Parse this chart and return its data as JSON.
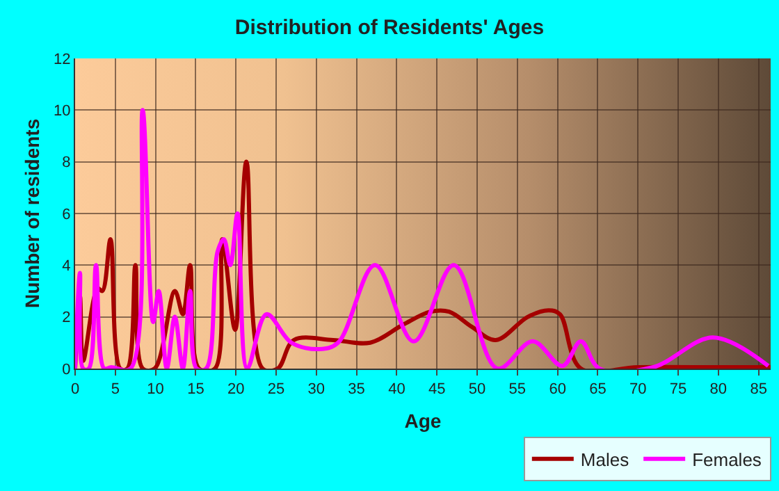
{
  "chart_data": {
    "type": "line",
    "title": "Distribution of Residents' Ages",
    "xlabel": "Age",
    "ylabel": "Number of residents",
    "xlim": [
      0,
      86.5
    ],
    "xticks": [
      0,
      5,
      10,
      15,
      20,
      25,
      30,
      35,
      40,
      45,
      50,
      55,
      60,
      65,
      70,
      75,
      80,
      85
    ],
    "ylim": [
      0,
      12
    ],
    "yticks": [
      0,
      2,
      4,
      6,
      8,
      10,
      12
    ],
    "grid": true,
    "legend": "bottom right",
    "marker": "none",
    "line_style": "solid",
    "series": [
      {
        "name": "Males",
        "color": "#a50000",
        "x": [
          0,
          0.6,
          1,
          2.8,
          3.4,
          4.4,
          5.6,
          6.5,
          7.5,
          8.4,
          9.9,
          12.4,
          13.4,
          14.3,
          15.4,
          17.4,
          18.3,
          19.9,
          21.3,
          23.3,
          25.2,
          27.2,
          32.1,
          36.7,
          40.8,
          44.2,
          46.5,
          49.4,
          52.3,
          56.3,
          58.9,
          60.3,
          62.9,
          70,
          80,
          86.5
        ],
        "values": [
          0,
          2.8,
          0.3,
          3.1,
          3,
          5,
          0,
          0,
          4,
          0,
          0,
          3,
          2.1,
          4,
          0,
          0,
          5,
          1.5,
          8,
          0,
          0,
          1.1,
          1.1,
          1,
          1.7,
          2.2,
          2.2,
          1.6,
          1.1,
          2,
          2.25,
          2.1,
          0,
          0.05,
          0.05,
          0.05
        ]
      },
      {
        "name": "Females",
        "color": "#ff00ff",
        "x": [
          0,
          0.6,
          1,
          1.7,
          2.6,
          3.6,
          4.5,
          6.9,
          8.4,
          9.7,
          10.4,
          11.4,
          12.4,
          13.4,
          14.3,
          15.1,
          16.3,
          17.7,
          18.5,
          19.3,
          20.2,
          21.4,
          23.8,
          26.9,
          30.4,
          32.7,
          37.3,
          42.1,
          47.1,
          52.5,
          56.9,
          60.6,
          62.9,
          65.2,
          71.9,
          79.3,
          86.2
        ],
        "values": [
          0,
          3.7,
          0,
          0,
          4,
          0,
          0.05,
          0,
          10,
          1.8,
          3,
          0,
          2,
          0,
          3,
          0,
          0,
          4.5,
          5,
          4,
          6,
          0,
          2.1,
          1,
          0.75,
          1,
          4,
          1.05,
          4,
          0,
          1.05,
          0.1,
          1.05,
          0,
          0.05,
          1.2,
          0.1
        ]
      }
    ]
  }
}
